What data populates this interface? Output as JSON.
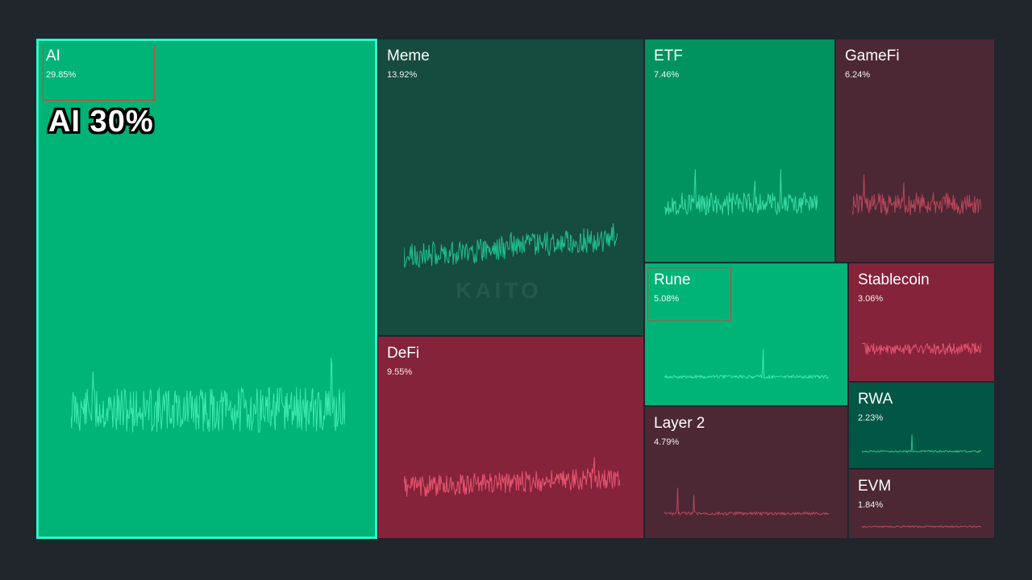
{
  "tiles": [
    {
      "id": "ai",
      "name": "AI",
      "percent": "29.85%",
      "bg": "#00b377",
      "line": "#3ce8ae"
    },
    {
      "id": "meme",
      "name": "Meme",
      "percent": "13.92%",
      "bg": "#164b40",
      "line": "#1fc08e"
    },
    {
      "id": "etf",
      "name": "ETF",
      "percent": "7.46%",
      "bg": "#00925f",
      "line": "#38dba6"
    },
    {
      "id": "gamefi",
      "name": "GameFi",
      "percent": "6.24%",
      "bg": "#4c2834",
      "line": "#b8455c"
    },
    {
      "id": "defi",
      "name": "DeFi",
      "percent": "9.55%",
      "bg": "#85233b",
      "line": "#e6536e"
    },
    {
      "id": "rune",
      "name": "Rune",
      "percent": "5.08%",
      "bg": "#00b377",
      "line": "#3ce8ae"
    },
    {
      "id": "stablecoin",
      "name": "Stablecoin",
      "percent": "3.06%",
      "bg": "#85233b",
      "line": "#e6536e"
    },
    {
      "id": "layer2",
      "name": "Layer 2",
      "percent": "4.79%",
      "bg": "#4c2834",
      "line": "#b8455c"
    },
    {
      "id": "rwa",
      "name": "RWA",
      "percent": "2.23%",
      "bg": "#015743",
      "line": "#1fc08e"
    },
    {
      "id": "evm",
      "name": "EVM",
      "percent": "1.84%",
      "bg": "#4c2834",
      "line": "#b8455c"
    }
  ],
  "overlay": {
    "caption": "AI 30%"
  },
  "watermark": {
    "text": "KAITO"
  }
}
